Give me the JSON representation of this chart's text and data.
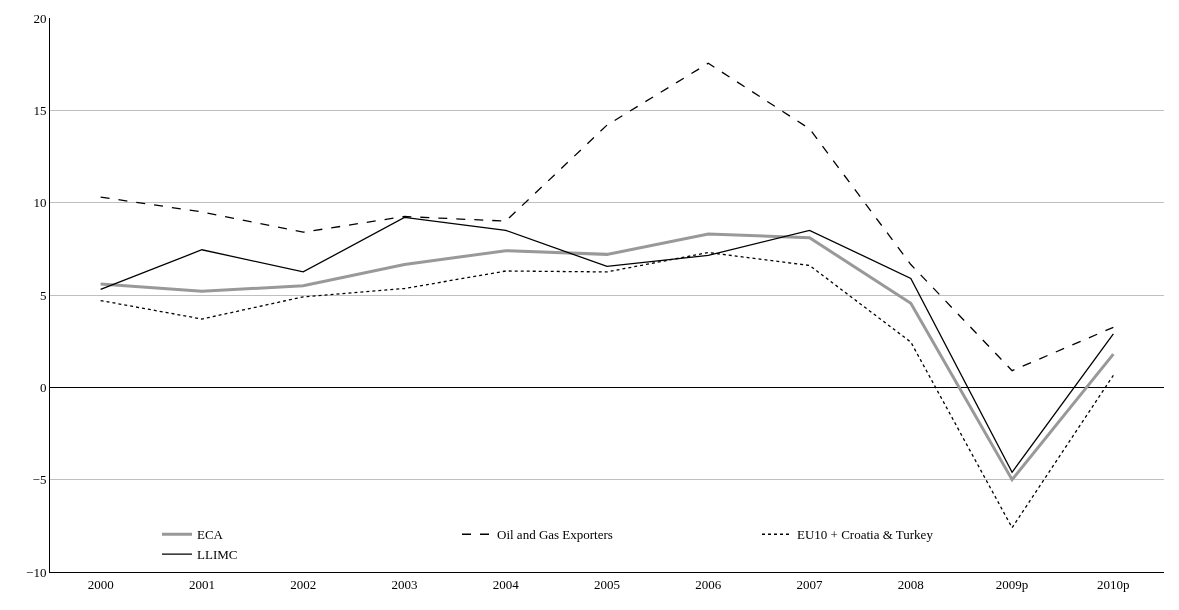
{
  "chart_data": {
    "type": "line",
    "categories": [
      "2000",
      "2001",
      "2002",
      "2003",
      "2004",
      "2005",
      "2006",
      "2007",
      "2008",
      "2009p",
      "2010p"
    ],
    "series": [
      {
        "name": "ECA",
        "color": "#999999",
        "line_style": "solid",
        "values": [
          5.6,
          5.2,
          5.5,
          6.65,
          7.4,
          7.2,
          8.3,
          8.1,
          4.55,
          -5.0,
          1.8
        ]
      },
      {
        "name": "Oil and Gas Exporters",
        "color": "#000000",
        "line_style": "dashed",
        "values": [
          10.3,
          9.5,
          8.4,
          9.25,
          9.0,
          14.2,
          17.55,
          14.0,
          6.65,
          0.9,
          3.25
        ]
      },
      {
        "name": "EU10 + Croatia & Turkey",
        "color": "#000000",
        "line_style": "dotted",
        "values": [
          4.7,
          3.7,
          4.9,
          5.35,
          6.3,
          6.25,
          7.3,
          6.6,
          2.45,
          -7.6,
          0.65
        ]
      },
      {
        "name": "LLIMC",
        "color": "#000000",
        "line_style": "solid",
        "values": [
          5.3,
          7.45,
          6.25,
          9.2,
          8.5,
          6.55,
          7.15,
          8.5,
          5.9,
          -4.6,
          2.9
        ]
      }
    ],
    "ylim": [
      -10,
      20
    ],
    "yticks": [
      {
        "value": -10,
        "label": "−10"
      },
      {
        "value": -5,
        "label": "−5"
      },
      0,
      5,
      10,
      15,
      20
    ],
    "grid": "y",
    "legend": "bottom",
    "marker": "none"
  }
}
